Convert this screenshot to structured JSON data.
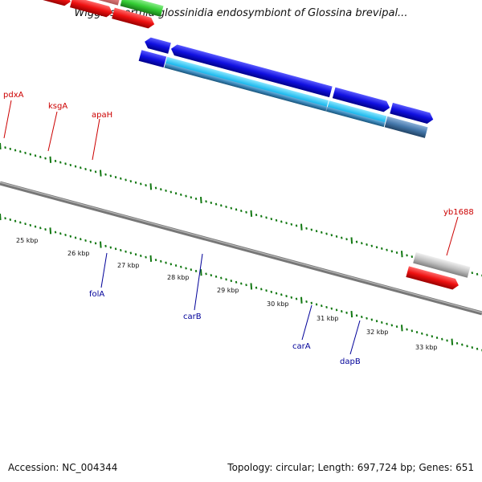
{
  "title": "Wigglesworthia glossinidia endosymbiont of Glossina brevipal...",
  "footer": {
    "accession": "Accession: NC_004344",
    "stats": "Topology: circular; Length: 697,724 bp; Genes: 651"
  },
  "scale_labels": [
    "25 kbp",
    "26 kbp",
    "27 kbp",
    "28 kbp",
    "29 kbp",
    "30 kbp",
    "31 kbp",
    "32 kbp",
    "33 kbp"
  ],
  "genes": {
    "pdxA": "pdxA",
    "ksgA": "ksgA",
    "apaH": "apaH",
    "yb1688": "yb1688",
    "folA": "folA",
    "carB": "carB",
    "carA": "carA",
    "dapB": "dapB"
  },
  "colors": {
    "blue": "#1010e0",
    "red": "#ee1111",
    "pink": "#e88080",
    "green": "#33cc33",
    "gray": "#c0c0c0",
    "cyan": "#22bbee",
    "steel": "#4477aa",
    "tick": "#117711",
    "label_red": "#cc0000",
    "label_blue": "#000099"
  }
}
